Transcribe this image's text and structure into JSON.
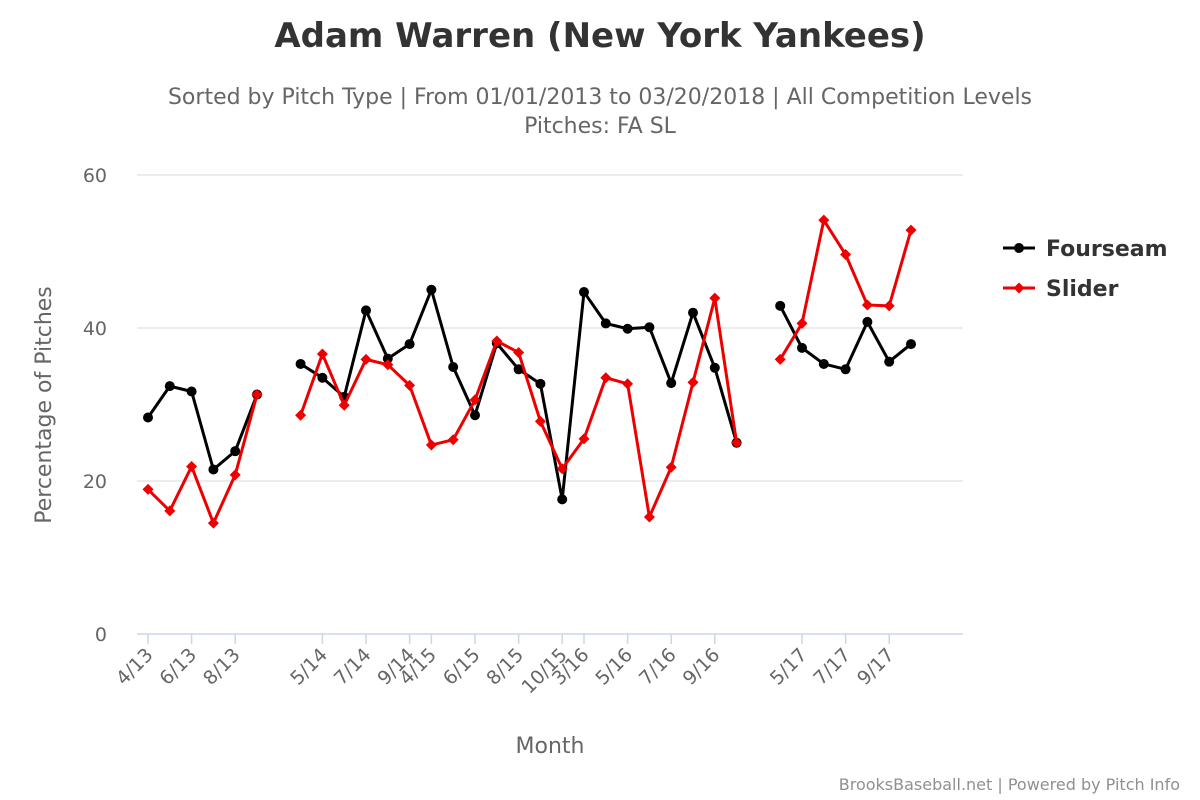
{
  "chart_data": {
    "type": "line",
    "title": "Adam Warren (New York Yankees)",
    "subtitle_line1": "Sorted by Pitch Type | From 01/01/2013 to 03/20/2018 | All Competition Levels",
    "subtitle_line2": "Pitches: FA SL",
    "xlabel": "Month",
    "ylabel": "Percentage of Pitches",
    "ylim": [
      0,
      60
    ],
    "yticks": [
      0,
      20,
      40,
      60
    ],
    "grid": true,
    "legend_position": "right",
    "tick_labels": [
      "4/13",
      "6/13",
      "8/13",
      "5/14",
      "7/14",
      "9/14",
      "4/15",
      "6/15",
      "8/15",
      "10/15",
      "3/16",
      "5/16",
      "7/16",
      "9/16",
      "5/17",
      "7/17",
      "9/17"
    ],
    "categories": [
      "4/13",
      "5/13",
      "6/13",
      "7/13",
      "8/13",
      "9/13",
      "",
      "4/14",
      "5/14",
      "6/14",
      "7/14",
      "8/14",
      "9/14",
      "4/15",
      "5/15",
      "6/15",
      "7/15",
      "8/15",
      "9/15",
      "10/15",
      "3/16",
      "4/16",
      "5/16",
      "6/16",
      "7/16",
      "8/16",
      "9/16",
      "10/16",
      "",
      "4/17",
      "5/17",
      "6/17",
      "7/17",
      "8/17",
      "9/17",
      "10/17"
    ],
    "series": [
      {
        "name": "Fourseam",
        "color": "#000000",
        "marker": "circle",
        "values": [
          28.3,
          32.4,
          31.7,
          21.5,
          23.9,
          31.3,
          null,
          35.3,
          33.5,
          31.0,
          42.3,
          36.0,
          37.9,
          45.0,
          34.9,
          28.6,
          38.0,
          34.6,
          32.7,
          17.6,
          44.7,
          40.6,
          39.9,
          40.1,
          32.8,
          42.0,
          34.8,
          25.0,
          null,
          42.9,
          37.4,
          35.3,
          34.6,
          40.8,
          35.6,
          37.9
        ]
      },
      {
        "name": "Slider",
        "color": "#ee0000",
        "marker": "diamond",
        "values": [
          18.9,
          16.1,
          21.9,
          14.5,
          20.8,
          31.3,
          null,
          28.6,
          36.6,
          29.9,
          35.9,
          35.2,
          32.5,
          24.7,
          25.4,
          30.6,
          38.3,
          36.8,
          27.8,
          21.6,
          25.5,
          33.5,
          32.7,
          15.3,
          21.8,
          32.9,
          43.9,
          25.0,
          null,
          35.9,
          40.6,
          54.1,
          49.6,
          43.0,
          42.9,
          52.8
        ]
      }
    ]
  },
  "credits": "BrooksBaseball.net | Powered by Pitch Info"
}
